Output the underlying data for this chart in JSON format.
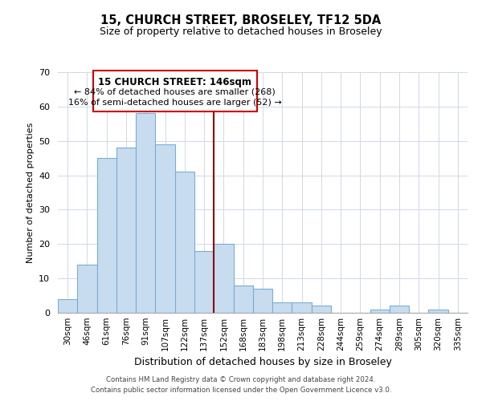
{
  "title": "15, CHURCH STREET, BROSELEY, TF12 5DA",
  "subtitle": "Size of property relative to detached houses in Broseley",
  "xlabel": "Distribution of detached houses by size in Broseley",
  "ylabel": "Number of detached properties",
  "bar_labels": [
    "30sqm",
    "46sqm",
    "61sqm",
    "76sqm",
    "91sqm",
    "107sqm",
    "122sqm",
    "137sqm",
    "152sqm",
    "168sqm",
    "183sqm",
    "198sqm",
    "213sqm",
    "228sqm",
    "244sqm",
    "259sqm",
    "274sqm",
    "289sqm",
    "305sqm",
    "320sqm",
    "335sqm"
  ],
  "bar_values": [
    4,
    14,
    45,
    48,
    58,
    49,
    41,
    18,
    20,
    8,
    7,
    3,
    3,
    2,
    0,
    0,
    1,
    2,
    0,
    1,
    0
  ],
  "bar_color": "#c8dcf0",
  "bar_edge_color": "#7aadd4",
  "ylim": [
    0,
    70
  ],
  "yticks": [
    0,
    10,
    20,
    30,
    40,
    50,
    60,
    70
  ],
  "vline_x": 7.5,
  "vline_color": "#8b0000",
  "annotation_title": "15 CHURCH STREET: 146sqm",
  "annotation_line1": "← 84% of detached houses are smaller (268)",
  "annotation_line2": "16% of semi-detached houses are larger (52) →",
  "annotation_box_color": "#ffffff",
  "annotation_box_edge": "#cc0000",
  "footer_line1": "Contains HM Land Registry data © Crown copyright and database right 2024.",
  "footer_line2": "Contains public sector information licensed under the Open Government Licence v3.0.",
  "background_color": "#ffffff",
  "grid_color": "#d0d8e8"
}
